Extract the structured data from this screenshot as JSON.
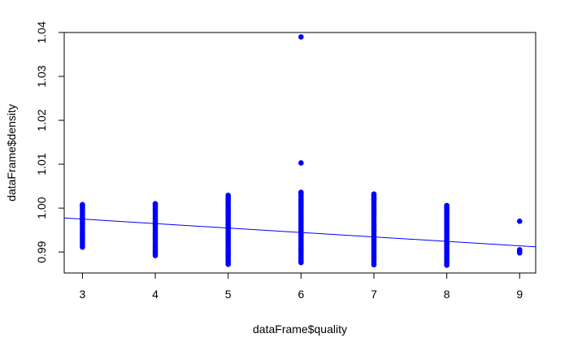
{
  "chart_data": {
    "type": "scatter",
    "xlabel": "dataFrame$quality",
    "ylabel": "dataFrame$density",
    "xlim": [
      2.75,
      9.22
    ],
    "ylim": [
      0.98522,
      1.04
    ],
    "x_ticks": [
      3,
      4,
      5,
      6,
      7,
      8,
      9
    ],
    "y_ticks": [
      0.99,
      1.0,
      1.01,
      1.02,
      1.03,
      1.04
    ],
    "x_tick_labels": [
      "3",
      "4",
      "5",
      "6",
      "7",
      "8",
      "9"
    ],
    "y_tick_labels": [
      "0.99",
      "1.00",
      "1.01",
      "1.02",
      "1.03",
      "1.04"
    ],
    "grid": false,
    "point_color": "#0000FF",
    "line_color": "#0000FF",
    "columns": [
      {
        "x": 3,
        "min": 0.9911,
        "max": 1.0008
      },
      {
        "x": 4,
        "min": 0.9892,
        "max": 1.001
      },
      {
        "x": 5,
        "min": 0.9872,
        "max": 1.0029
      },
      {
        "x": 6,
        "min": 0.9876,
        "max": 1.0036
      },
      {
        "x": 7,
        "min": 0.9871,
        "max": 1.0032
      },
      {
        "x": 8,
        "min": 0.987,
        "max": 1.0006
      },
      {
        "x": 9,
        "min": 0.9898,
        "max": 0.9905
      }
    ],
    "extra_points": [
      {
        "x": 6,
        "y": 1.039
      },
      {
        "x": 6,
        "y": 1.0103
      },
      {
        "x": 9,
        "y": 0.997
      },
      {
        "x": 7,
        "y": 1.0021
      },
      {
        "x": 8,
        "y": 0.9992
      }
    ],
    "regression_line": {
      "x": [
        2.75,
        9.22
      ],
      "y": [
        0.99775,
        0.99118
      ]
    }
  }
}
